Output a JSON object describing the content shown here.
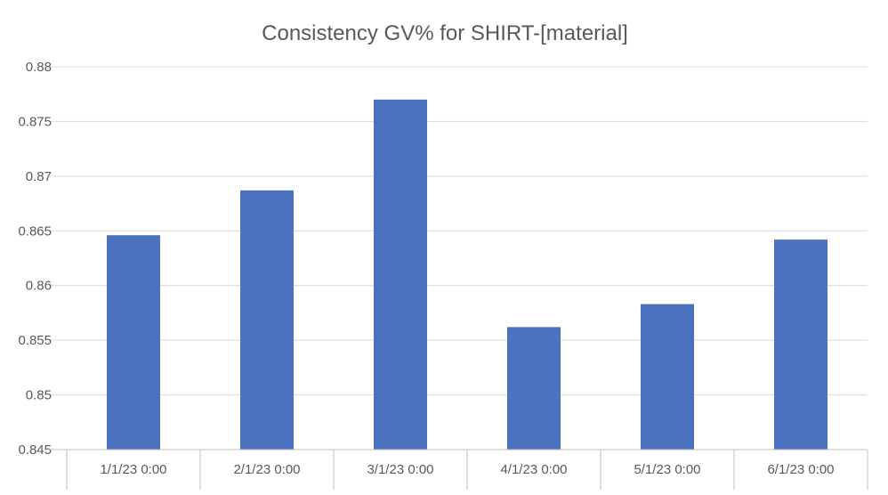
{
  "chart_data": {
    "type": "bar",
    "title": "Consistency GV% for SHIRT-[material]",
    "xlabel": "",
    "ylabel": "",
    "categories": [
      "1/1/23 0:00",
      "2/1/23 0:00",
      "3/1/23 0:00",
      "4/1/23 0:00",
      "5/1/23 0:00",
      "6/1/23 0:00"
    ],
    "values": [
      0.8646,
      0.8687,
      0.877,
      0.8562,
      0.8583,
      0.8642
    ],
    "ylim": [
      0.845,
      0.88
    ],
    "yticks": [
      "0.845",
      "0.85",
      "0.855",
      "0.86",
      "0.865",
      "0.87",
      "0.875",
      "0.88"
    ],
    "grid": true,
    "legend": "none",
    "bar_color": "#4a72bf"
  }
}
